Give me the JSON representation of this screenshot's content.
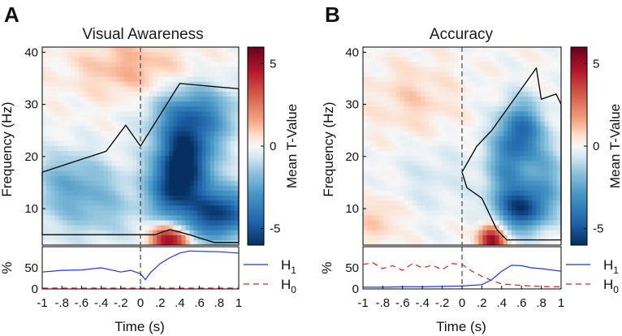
{
  "chart_data": [
    {
      "type": "heatmap",
      "panel_label": "A",
      "title": "Visual Awareness",
      "xlabel": "Time (s)",
      "ylabel": "Frequency (Hz)",
      "x_range": [
        -1,
        1
      ],
      "y_range": [
        3,
        41
      ],
      "y_ticks": [
        "10",
        "20",
        "30",
        "40"
      ],
      "x_ticks": [
        "-1",
        "-.8",
        "-.6",
        "-.4",
        "-.2",
        "0",
        ".2",
        ".4",
        ".6",
        ".8",
        "1"
      ],
      "stimulus_onset": 0,
      "colorbar": {
        "label": "Mean T-Value",
        "range": [
          -6,
          6
        ],
        "ticks": [
          "5",
          "0",
          "-5"
        ]
      },
      "blobs": [
        {
          "t": 0.45,
          "f": 19,
          "st": 0.2,
          "sf": 5,
          "v": -6.0
        },
        {
          "t": 0.8,
          "f": 9,
          "st": 0.25,
          "sf": 3.5,
          "v": -5.5
        },
        {
          "t": 0.55,
          "f": 28,
          "st": 0.3,
          "sf": 4,
          "v": -3.5
        },
        {
          "t": 0.3,
          "f": 13,
          "st": 0.15,
          "sf": 4,
          "v": -3.0
        },
        {
          "t": -0.5,
          "f": 11,
          "st": 0.4,
          "sf": 5,
          "v": -1.7
        },
        {
          "t": -0.75,
          "f": 16,
          "st": 0.25,
          "sf": 4,
          "v": -1.3
        },
        {
          "t": 0.25,
          "f": 4,
          "st": 0.1,
          "sf": 2.2,
          "v": 5.0
        },
        {
          "t": 0.4,
          "f": 4,
          "st": 0.08,
          "sf": 1.5,
          "v": 2.5
        },
        {
          "t": -0.1,
          "f": 37,
          "st": 0.4,
          "sf": 4,
          "v": 1.3
        }
      ],
      "sig_regions": [
        {
          "t": [
            -1.0,
            -0.35,
            -0.15,
            0.0,
            0.4,
            1.0,
            1.0,
            0.75,
            0.5,
            0.3,
            0.15,
            -0.05,
            -0.45,
            -1.0
          ],
          "f": [
            17,
            21,
            26,
            22,
            34,
            33,
            3.5,
            3.5,
            5,
            6,
            5,
            5,
            5,
            5
          ]
        }
      ],
      "proportion_series": [
        {
          "name": "H1",
          "x": [
            -1,
            -0.8,
            -0.6,
            -0.4,
            -0.2,
            -0.1,
            0,
            0.05,
            0.1,
            0.2,
            0.3,
            0.4,
            0.5,
            0.6,
            0.8,
            1
          ],
          "y": [
            40,
            44,
            45,
            50,
            40,
            44,
            36,
            22,
            38,
            60,
            74,
            85,
            90,
            89,
            88,
            85
          ]
        },
        {
          "name": "H0",
          "x": [
            -1,
            -0.5,
            0,
            0.5,
            1
          ],
          "y": [
            2,
            2,
            2,
            2,
            2
          ]
        }
      ]
    },
    {
      "type": "heatmap",
      "panel_label": "B",
      "title": "Accuracy",
      "xlabel": "Time (s)",
      "ylabel": "Frequency (Hz)",
      "x_range": [
        -1,
        1
      ],
      "y_range": [
        3,
        41
      ],
      "y_ticks": [
        "10",
        "20",
        "30",
        "40"
      ],
      "x_ticks": [
        "-1",
        "-.8",
        "-.6",
        "-.4",
        "-.2",
        "0",
        ".2",
        ".4",
        ".6",
        ".8",
        "1"
      ],
      "stimulus_onset": 0,
      "colorbar": {
        "label": "Mean T-Value",
        "range": [
          -6,
          6
        ],
        "ticks": [
          "5",
          "0",
          "-5"
        ]
      },
      "blobs": [
        {
          "t": 0.6,
          "f": 10,
          "st": 0.18,
          "sf": 3,
          "v": -5.0
        },
        {
          "t": 0.6,
          "f": 25,
          "st": 0.15,
          "sf": 4,
          "v": -3.8
        },
        {
          "t": 0.45,
          "f": 18,
          "st": 0.15,
          "sf": 5,
          "v": -2.6
        },
        {
          "t": 0.85,
          "f": 16,
          "st": 0.15,
          "sf": 5,
          "v": -2.0
        },
        {
          "t": 0.3,
          "f": 4,
          "st": 0.09,
          "sf": 2,
          "v": 5.2
        },
        {
          "t": -0.5,
          "f": 31,
          "st": 0.3,
          "sf": 5,
          "v": 0.8
        },
        {
          "t": -0.85,
          "f": 8,
          "st": 0.15,
          "sf": 3,
          "v": 1.0
        },
        {
          "t": -0.3,
          "f": 16,
          "st": 0.3,
          "sf": 5,
          "v": -0.6
        }
      ],
      "sig_regions": [
        {
          "t": [
            0.0,
            0.15,
            0.3,
            0.45,
            0.6,
            0.75,
            0.8,
            0.95,
            1.0,
            1.0,
            0.8,
            0.6,
            0.45,
            0.35,
            0.2,
            0.05
          ],
          "f": [
            17,
            22,
            25,
            29,
            33,
            37,
            31,
            32,
            30,
            4,
            4,
            4,
            4,
            6,
            12,
            14
          ]
        }
      ],
      "proportion_series": [
        {
          "name": "H1",
          "x": [
            -1,
            -0.8,
            -0.6,
            -0.4,
            -0.2,
            0,
            0.2,
            0.3,
            0.4,
            0.5,
            0.6,
            0.7,
            0.8,
            1
          ],
          "y": [
            4,
            4,
            5,
            5,
            6,
            7,
            10,
            22,
            42,
            56,
            55,
            50,
            48,
            42
          ]
        },
        {
          "name": "H0",
          "x": [
            -1,
            -0.9,
            -0.8,
            -0.7,
            -0.6,
            -0.5,
            -0.4,
            -0.3,
            -0.2,
            -0.1,
            0,
            0.1,
            0.2,
            0.3,
            0.4,
            0.6,
            0.8,
            1
          ],
          "y": [
            58,
            62,
            48,
            55,
            44,
            60,
            50,
            56,
            46,
            60,
            58,
            42,
            30,
            20,
            12,
            8,
            6,
            5
          ]
        }
      ]
    }
  ]
}
